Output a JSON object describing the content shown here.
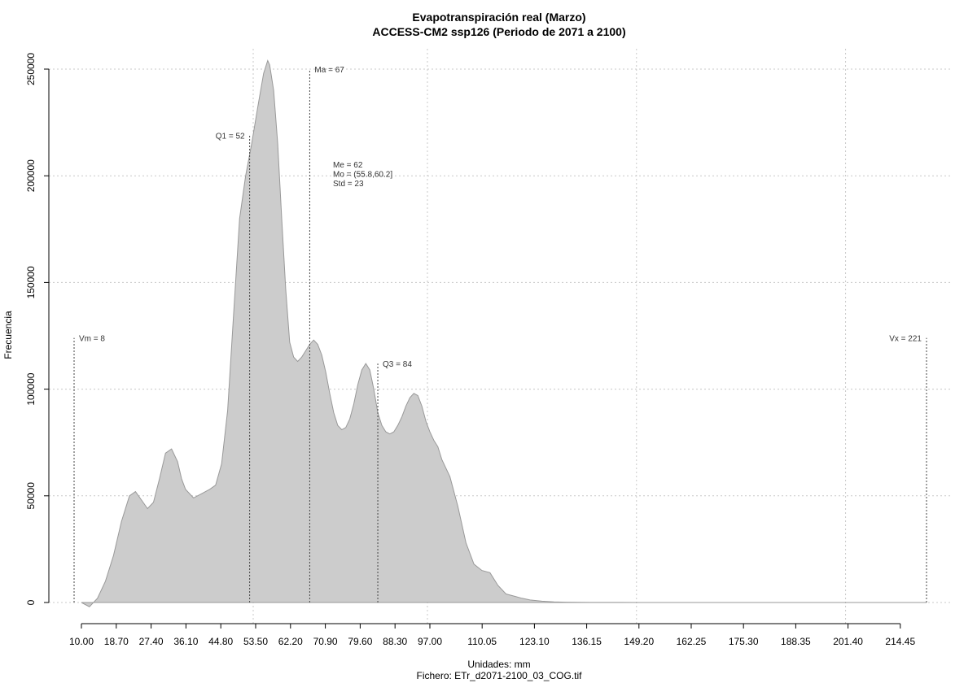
{
  "chart_data": {
    "type": "area",
    "title": "Evapotranspiración real (Marzo)",
    "subtitle": "ACCESS-CM2 ssp126 (Periodo de 2071 a 2100)",
    "xlabel": "Unidades: mm",
    "ylabel": "Frecuencia",
    "footer": "Fichero: ETr_d2071-2100_03_COG.tif",
    "xlim": [
      10,
      221
    ],
    "ylim": [
      0,
      250000
    ],
    "grid": true,
    "fill_color": "#cccccc",
    "stroke_color": "#999999",
    "x_ticks": [
      {
        "value": 10.0,
        "label": "10.00"
      },
      {
        "value": 18.7,
        "label": "18.70"
      },
      {
        "value": 27.4,
        "label": "27.40"
      },
      {
        "value": 36.1,
        "label": "36.10"
      },
      {
        "value": 44.8,
        "label": "44.80"
      },
      {
        "value": 53.5,
        "label": "53.50"
      },
      {
        "value": 62.2,
        "label": "62.20"
      },
      {
        "value": 70.9,
        "label": "70.90"
      },
      {
        "value": 79.6,
        "label": "79.60"
      },
      {
        "value": 88.3,
        "label": "88.30"
      },
      {
        "value": 97.0,
        "label": "97.00"
      },
      {
        "value": 110.05,
        "label": "110.05"
      },
      {
        "value": 123.1,
        "label": "123.10"
      },
      {
        "value": 136.15,
        "label": "136.15"
      },
      {
        "value": 149.2,
        "label": "149.20"
      },
      {
        "value": 162.25,
        "label": "162.25"
      },
      {
        "value": 175.3,
        "label": "175.30"
      },
      {
        "value": 188.35,
        "label": "188.35"
      },
      {
        "value": 201.4,
        "label": "201.40"
      },
      {
        "value": 214.45,
        "label": "214.45"
      }
    ],
    "y_ticks": [
      {
        "value": 0,
        "label": "0"
      },
      {
        "value": 50000,
        "label": "50000"
      },
      {
        "value": 100000,
        "label": "100000"
      },
      {
        "value": 150000,
        "label": "150000"
      },
      {
        "value": 200000,
        "label": "200000"
      },
      {
        "value": 250000,
        "label": "250000"
      }
    ],
    "series": [
      {
        "x": [
          10,
          12,
          14,
          16,
          18,
          20,
          22,
          23.5,
          25,
          26.5,
          28,
          29.5,
          31,
          32.5,
          34,
          35,
          36,
          38,
          40,
          42,
          43.5,
          45,
          46.5,
          48,
          49.5,
          51,
          52.5,
          54,
          55.5,
          56.5,
          57,
          58,
          59,
          60,
          61,
          62,
          63,
          64,
          65,
          66,
          67,
          68,
          69,
          70,
          71,
          72,
          73,
          74,
          75,
          76,
          77,
          78,
          79,
          80,
          81,
          82,
          83,
          84,
          85,
          86,
          87,
          88,
          89,
          90,
          91,
          92,
          93,
          94,
          95,
          96,
          97,
          98,
          99,
          100,
          102,
          104,
          106,
          108,
          110,
          112,
          114,
          116,
          118,
          120,
          122,
          125,
          128,
          131,
          134,
          137,
          140,
          145,
          150,
          160,
          180,
          200,
          221
        ],
        "y": [
          0,
          -2000,
          2000,
          10000,
          22000,
          38000,
          50000,
          52000,
          48000,
          44000,
          47000,
          58000,
          70000,
          72000,
          66000,
          58000,
          53000,
          49000,
          51000,
          53000,
          55000,
          65000,
          90000,
          135000,
          180000,
          200000,
          215000,
          232000,
          248000,
          254000,
          252000,
          240000,
          215000,
          180000,
          147000,
          122000,
          115000,
          113000,
          115000,
          118000,
          121000,
          123000,
          121000,
          116000,
          108000,
          98000,
          89000,
          83000,
          81000,
          82000,
          86000,
          93000,
          102000,
          109000,
          112000,
          109000,
          100000,
          89000,
          83000,
          80000,
          79000,
          80000,
          83000,
          87000,
          92000,
          96000,
          98000,
          97000,
          92000,
          85000,
          80000,
          76000,
          73000,
          67000,
          59000,
          45000,
          28000,
          18000,
          15000,
          14000,
          8000,
          4000,
          3000,
          2000,
          1200,
          600,
          300,
          150,
          80,
          50,
          30,
          20,
          10,
          5,
          0,
          0,
          0
        ]
      }
    ],
    "stat_lines": [
      {
        "name": "Vm",
        "x": 8,
        "y_top": 124000,
        "label": "Vm = 8",
        "label_side": "right"
      },
      {
        "name": "Q1",
        "x": 52,
        "y_top": 219000,
        "label": "Q1 = 52",
        "label_side": "left"
      },
      {
        "name": "Ma",
        "x": 67,
        "y_top": 250000,
        "label": "Ma = 67",
        "label_side": "right"
      },
      {
        "name": "Q3",
        "x": 84,
        "y_top": 112000,
        "label": "Q3 = 84",
        "label_side": "right"
      },
      {
        "name": "Vx",
        "x": 221,
        "y_top": 124000,
        "label": "Vx = 221",
        "label_side": "left"
      }
    ],
    "stats_box": [
      "Me = 62",
      "Mo = (55.8,60.2]",
      "Std = 23"
    ]
  }
}
